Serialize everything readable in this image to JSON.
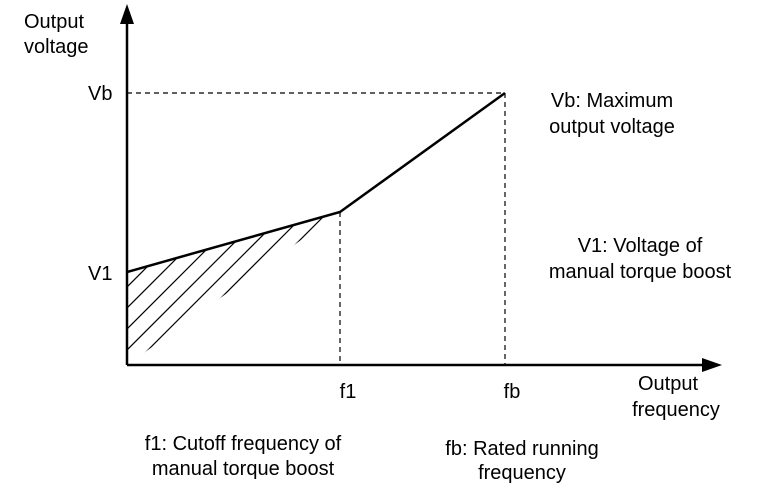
{
  "y_axis": {
    "label": [
      "Output",
      "voltage"
    ],
    "ticks": [
      "Vb",
      "V1"
    ]
  },
  "x_axis": {
    "label": [
      "Output",
      "frequency"
    ],
    "ticks": [
      "f1",
      "fb"
    ]
  },
  "notes": {
    "vb": [
      "Vb: Maximum",
      "output voltage"
    ],
    "v1": [
      "V1: Voltage of",
      "manual torque boost"
    ],
    "f1": [
      "f1: Cutoff frequency of",
      "manual torque boost"
    ],
    "fb": [
      "fb: Rated running",
      "frequency"
    ]
  }
}
